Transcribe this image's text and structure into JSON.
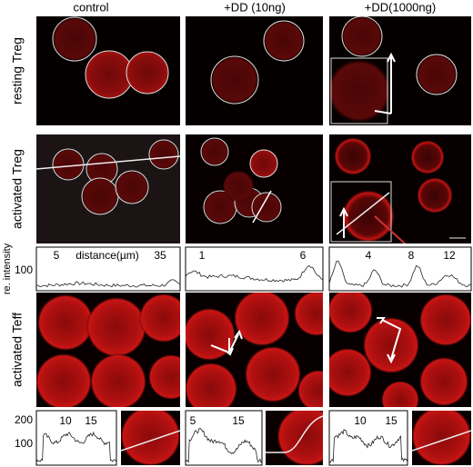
{
  "column_headers": [
    "control",
    "+DD (10ng)",
    "+DD(1000ng)"
  ],
  "row_labels": [
    "resting Treg",
    "activated Treg",
    "activated Teff"
  ],
  "intensity_label": "re. intensity",
  "profile_row": {
    "y_tick": 100,
    "panels": [
      {
        "labels": [
          5,
          "distance(µm)",
          35
        ]
      },
      {
        "labels": [
          1,
          6
        ]
      },
      {
        "labels": [
          4,
          8,
          12
        ]
      }
    ]
  },
  "teff_profiles": {
    "y_ticks": [
      200,
      100
    ],
    "panels": [
      {
        "labels": [
          10,
          15
        ]
      },
      {
        "labels": [
          5,
          15
        ]
      },
      {
        "labels": [
          10,
          15
        ]
      }
    ]
  }
}
